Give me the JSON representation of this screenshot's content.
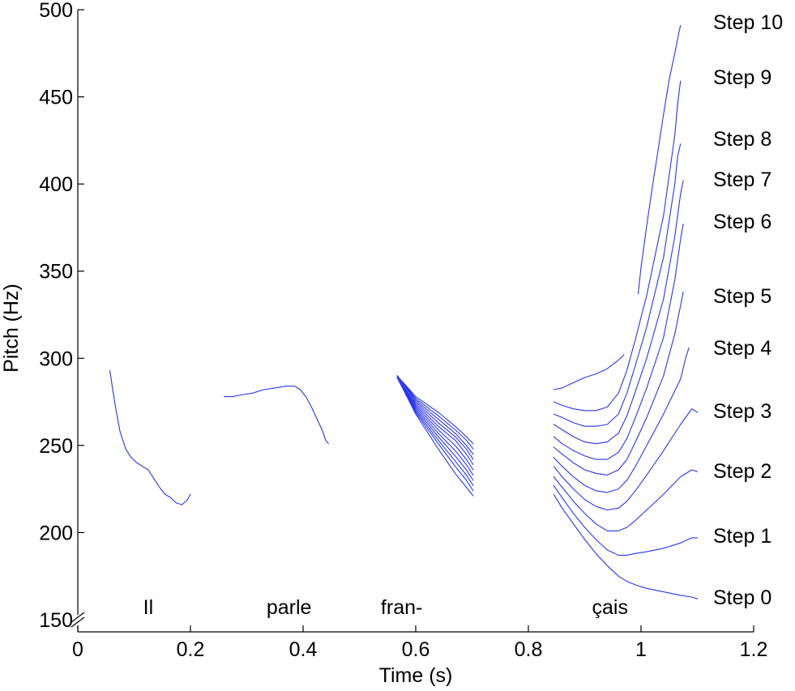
{
  "chart_data": {
    "type": "line",
    "xlabel": "Time (s)",
    "ylabel": "Pitch (Hz)",
    "xlim": [
      0,
      1.2
    ],
    "ylim": [
      150,
      500
    ],
    "x_ticks": [
      "0",
      "0.2",
      "0.4",
      "0.6",
      "0.8",
      "1",
      "1.2"
    ],
    "x_tick_values": [
      0,
      0.2,
      0.4,
      0.6,
      0.8,
      1.0,
      1.2
    ],
    "y_ticks": [
      "150",
      "200",
      "250",
      "300",
      "350",
      "400",
      "450",
      "500"
    ],
    "y_tick_values": [
      150,
      200,
      250,
      300,
      350,
      400,
      450,
      500
    ],
    "y_axis_break": true,
    "grid": false,
    "line_color": "#2b35e6",
    "words": [
      {
        "text": "Il",
        "x": 0.125
      },
      {
        "text": "parle",
        "x": 0.375
      },
      {
        "text": "fran-",
        "x": 0.575
      },
      {
        "text": "çais",
        "x": 0.945
      }
    ],
    "segments": [
      {
        "word": "Il",
        "x": [
          0.057,
          0.062,
          0.068,
          0.075,
          0.085,
          0.095,
          0.105,
          0.115,
          0.125,
          0.135,
          0.145,
          0.155,
          0.165,
          0.175,
          0.185,
          0.195,
          0.2
        ],
        "y": [
          293,
          282,
          270,
          258,
          248,
          243,
          240,
          238,
          236,
          231,
          226,
          222,
          220,
          217,
          216,
          219,
          222
        ]
      },
      {
        "word": "parle",
        "x": [
          0.26,
          0.275,
          0.29,
          0.31,
          0.33,
          0.35,
          0.37,
          0.385,
          0.395,
          0.405,
          0.415,
          0.425,
          0.435,
          0.44,
          0.445
        ],
        "y": [
          278,
          278,
          279,
          280,
          282,
          283,
          284,
          284,
          282,
          278,
          272,
          265,
          258,
          253,
          251
        ]
      }
    ],
    "series": [
      {
        "name": "Step 0",
        "x": [
          0.567,
          0.6,
          0.64,
          0.67,
          0.69,
          0.702
        ],
        "y": [
          289,
          268,
          248,
          234,
          226,
          221
        ],
        "x2": [
          0.845,
          0.86,
          0.88,
          0.9,
          0.92,
          0.94,
          0.96,
          0.975,
          0.99,
          1.01,
          1.04,
          1.07,
          1.09,
          1.1
        ],
        "y2": [
          222,
          214,
          205,
          196,
          188,
          181,
          175,
          172,
          170,
          168,
          166,
          164,
          163,
          162
        ]
      },
      {
        "name": "Step 1",
        "x": [
          0.567,
          0.6,
          0.64,
          0.67,
          0.69,
          0.702
        ],
        "y": [
          289,
          269,
          251,
          238,
          230,
          224
        ],
        "x2": [
          0.845,
          0.86,
          0.88,
          0.9,
          0.92,
          0.94,
          0.96,
          0.975,
          0.99,
          1.01,
          1.04,
          1.07,
          1.09,
          1.1
        ],
        "y2": [
          227,
          220,
          211,
          203,
          196,
          190,
          187,
          187,
          188,
          189,
          191,
          194,
          197,
          197
        ]
      },
      {
        "name": "Step 2",
        "x": [
          0.567,
          0.6,
          0.64,
          0.67,
          0.69,
          0.702
        ],
        "y": [
          289,
          270,
          253,
          241,
          233,
          227
        ],
        "x2": [
          0.845,
          0.86,
          0.88,
          0.9,
          0.92,
          0.94,
          0.96,
          0.975,
          0.99,
          1.01,
          1.04,
          1.07,
          1.09,
          1.1
        ],
        "y2": [
          232,
          226,
          218,
          211,
          205,
          201,
          201,
          203,
          207,
          213,
          222,
          232,
          236,
          235
        ]
      },
      {
        "name": "Step 3",
        "x": [
          0.567,
          0.6,
          0.64,
          0.67,
          0.69,
          0.702
        ],
        "y": [
          289,
          271,
          255,
          244,
          236,
          230
        ],
        "x2": [
          0.845,
          0.86,
          0.88,
          0.9,
          0.92,
          0.94,
          0.96,
          0.975,
          0.99,
          1.01,
          1.04,
          1.07,
          1.09,
          1.1
        ],
        "y2": [
          238,
          232,
          225,
          219,
          215,
          213,
          214,
          218,
          224,
          233,
          247,
          262,
          271,
          269
        ]
      },
      {
        "name": "Step 4",
        "x": [
          0.567,
          0.6,
          0.64,
          0.67,
          0.69,
          0.702
        ],
        "y": [
          289,
          272,
          257,
          247,
          239,
          233
        ],
        "x2": [
          0.845,
          0.86,
          0.88,
          0.9,
          0.92,
          0.94,
          0.96,
          0.975,
          0.99,
          1.01,
          1.04,
          1.07,
          1.08,
          1.085
        ],
        "y2": [
          243,
          238,
          232,
          227,
          224,
          223,
          225,
          230,
          238,
          250,
          268,
          288,
          301,
          306
        ]
      },
      {
        "name": "Step 5",
        "x": [
          0.567,
          0.6,
          0.64,
          0.67,
          0.69,
          0.702
        ],
        "y": [
          289,
          273,
          259,
          250,
          242,
          236
        ],
        "x2": [
          0.845,
          0.86,
          0.88,
          0.9,
          0.92,
          0.94,
          0.96,
          0.975,
          0.99,
          1.01,
          1.04,
          1.06,
          1.07,
          1.075
        ],
        "y2": [
          249,
          245,
          240,
          236,
          234,
          233,
          236,
          242,
          252,
          266,
          290,
          314,
          330,
          338
        ]
      },
      {
        "name": "Step 6",
        "x": [
          0.567,
          0.6,
          0.64,
          0.67,
          0.69,
          0.702
        ],
        "y": [
          289,
          274,
          261,
          253,
          245,
          239
        ],
        "x2": [
          0.845,
          0.86,
          0.88,
          0.9,
          0.92,
          0.94,
          0.96,
          0.975,
          0.99,
          1.01,
          1.04,
          1.06,
          1.07,
          1.075
        ],
        "y2": [
          255,
          251,
          247,
          244,
          242,
          242,
          246,
          254,
          266,
          283,
          312,
          345,
          368,
          377
        ]
      },
      {
        "name": "Step 7",
        "x": [
          0.567,
          0.6,
          0.64,
          0.67,
          0.69,
          0.702
        ],
        "y": [
          290,
          275,
          263,
          255,
          248,
          242
        ],
        "x2": [
          0.845,
          0.86,
          0.88,
          0.9,
          0.92,
          0.94,
          0.96,
          0.975,
          0.99,
          1.01,
          1.04,
          1.06,
          1.07,
          1.075
        ],
        "y2": [
          262,
          259,
          255,
          252,
          251,
          252,
          257,
          267,
          281,
          300,
          334,
          370,
          394,
          402
        ]
      },
      {
        "name": "Step 8",
        "x": [
          0.567,
          0.6,
          0.64,
          0.67,
          0.69,
          0.702
        ],
        "y": [
          290,
          276,
          265,
          257,
          250,
          245
        ],
        "x2": [
          0.845,
          0.86,
          0.88,
          0.9,
          0.92,
          0.94,
          0.96,
          0.975,
          0.99,
          1.01,
          1.04,
          1.06,
          1.065,
          1.07
        ],
        "y2": [
          268,
          266,
          263,
          261,
          261,
          262,
          268,
          280,
          296,
          318,
          358,
          400,
          416,
          423
        ]
      },
      {
        "name": "Step 9",
        "x": [
          0.567,
          0.6,
          0.64,
          0.67,
          0.69,
          0.702
        ],
        "y": [
          290,
          277,
          267,
          259,
          253,
          248
        ],
        "x2": [
          0.845,
          0.86,
          0.88,
          0.9,
          0.92,
          0.94,
          0.96,
          0.975,
          0.99,
          1.01,
          1.04,
          1.06,
          1.065,
          1.07
        ],
        "y2": [
          275,
          273,
          271,
          270,
          270,
          272,
          280,
          293,
          311,
          336,
          382,
          428,
          446,
          459
        ]
      },
      {
        "name": "Step 10",
        "x": [
          0.567,
          0.6,
          0.64,
          0.67,
          0.69,
          0.702
        ],
        "y": [
          290,
          278,
          269,
          261,
          255,
          251
        ],
        "x2": [
          0.845,
          0.86,
          0.88,
          0.9,
          0.92,
          0.94,
          0.96,
          0.97
        ],
        "y2": [
          282,
          283,
          286,
          289,
          291,
          294,
          299,
          302
        ],
        "x3": [
          0.995,
          1.0,
          1.01,
          1.02,
          1.03,
          1.04,
          1.05,
          1.06,
          1.066,
          1.07
        ],
        "y3": [
          337,
          352,
          376,
          398,
          419,
          440,
          460,
          475,
          485,
          491
        ]
      }
    ]
  }
}
